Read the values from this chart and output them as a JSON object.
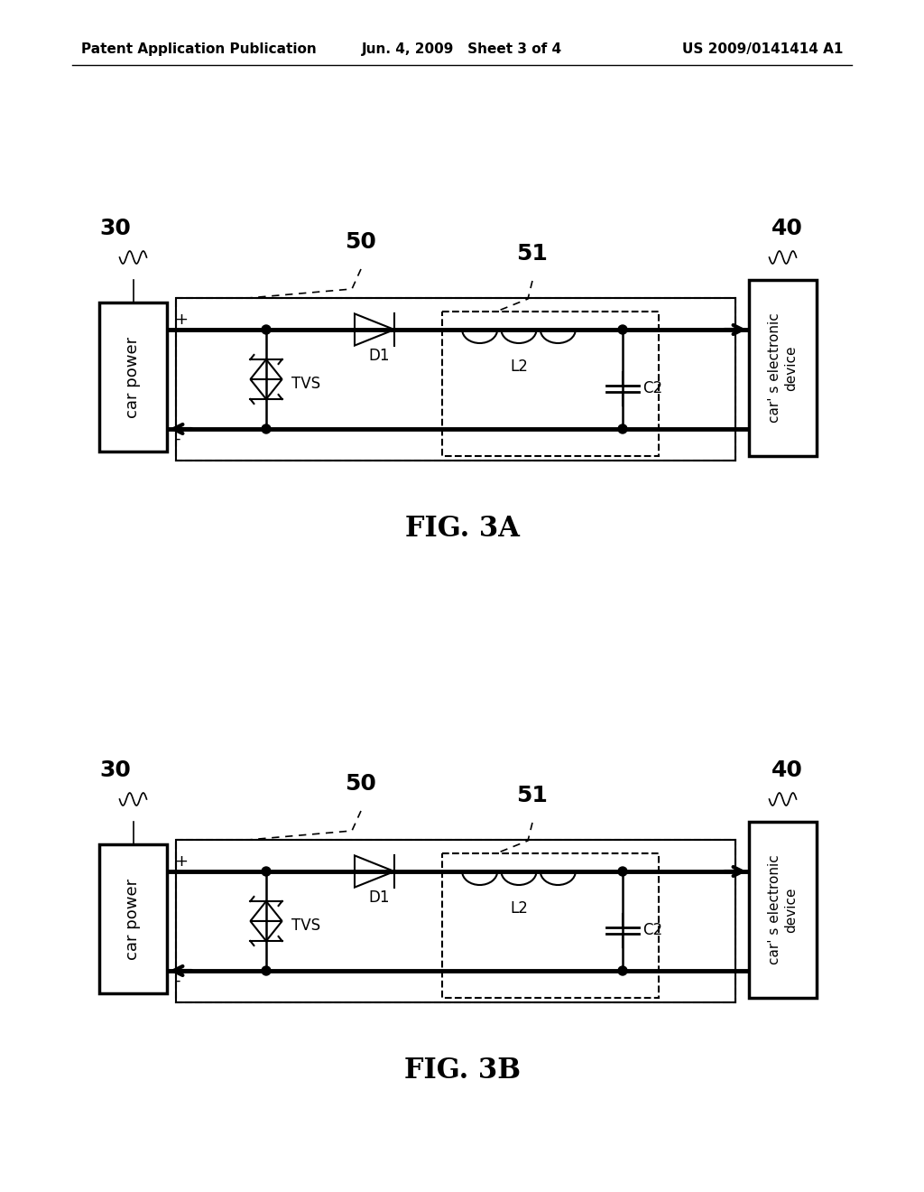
{
  "bg_color": "#ffffff",
  "text_color": "#000000",
  "header_left": "Patent Application Publication",
  "header_center": "Jun. 4, 2009   Sheet 3 of 4",
  "header_right": "US 2009/0141414 A1",
  "fig3a_label": "FIG. 3A",
  "fig3b_label": "FIG. 3B",
  "label_30": "30",
  "label_40": "40",
  "label_50": "50",
  "label_51": "51",
  "car_power_text": "car power",
  "car_electronic_text": "car' s electronic\ndevice",
  "plus_label": "+",
  "minus_label": "-",
  "D1_label": "D1",
  "L2_label": "L2",
  "C2_label": "C2",
  "TVS_label": "TVS"
}
